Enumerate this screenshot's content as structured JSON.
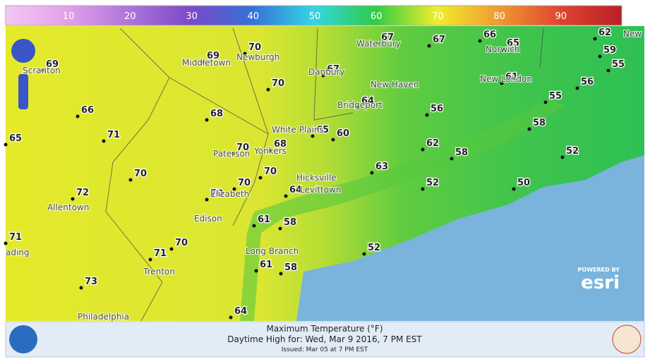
{
  "colorbar": {
    "labels": [
      10,
      20,
      30,
      40,
      50,
      60,
      70,
      80,
      90
    ]
  },
  "stations": [
    69,
    66,
    65,
    71,
    70,
    72,
    71,
    71,
    70,
    73,
    69,
    70,
    70,
    68,
    68,
    70,
    70,
    70,
    70,
    64,
    65,
    60,
    67,
    67,
    67,
    66,
    65,
    64,
    61,
    56,
    62,
    58,
    63,
    52,
    50,
    58,
    52,
    55,
    56,
    55,
    59,
    62,
    61,
    58,
    52,
    61,
    58,
    64
  ],
  "places": [
    "Scranton",
    "Middletown",
    "Newburgh",
    "Waterbury",
    "Norwich",
    "Danbury",
    "New Haven",
    "Bridgeport",
    "New London",
    "White Plains",
    "Yonkers",
    "Paterson",
    "Hicksville",
    "Levittown",
    "Elizabeth",
    "Edison",
    "Allentown",
    "ading",
    "Trenton",
    "Long Branch",
    "Philadelphia",
    "New"
  ],
  "footer": {
    "title": "Maximum Temperature (°F)",
    "subtitle": "Daytime High for: Wed, Mar  9 2016,   7 PM EST",
    "issued": "Issued: Mar 05 at 7 PM EST"
  },
  "attribution": {
    "powered_by": "POWERED BY",
    "brand": "esri"
  }
}
